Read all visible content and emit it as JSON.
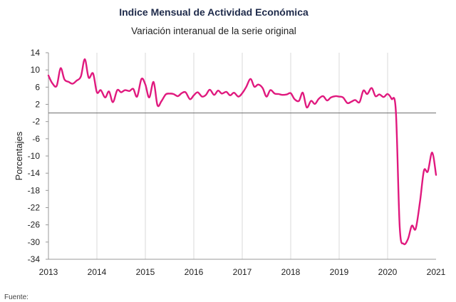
{
  "chart_data": {
    "type": "line",
    "title": "Indice Mensual de  Actividad Económica",
    "subtitle": "Variación interanual de la serie original",
    "xlabel": "",
    "ylabel": "Porcentajes",
    "ylim": [
      -34,
      14
    ],
    "yticks": [
      14,
      10,
      6,
      2,
      -2,
      -6,
      -10,
      -14,
      -18,
      -22,
      -26,
      -30,
      -34
    ],
    "xlim": [
      2013,
      2021
    ],
    "xticks": [
      "2013",
      "2014",
      "2015",
      "2016",
      "2017",
      "2018",
      "2019",
      "2020",
      "2021"
    ],
    "reference_line": 0,
    "grid": "vertical",
    "color": "#e0197e",
    "x": [
      2013.0,
      2013.08,
      2013.17,
      2013.25,
      2013.33,
      2013.42,
      2013.5,
      2013.58,
      2013.67,
      2013.75,
      2013.83,
      2013.92,
      2014.0,
      2014.08,
      2014.17,
      2014.25,
      2014.33,
      2014.42,
      2014.5,
      2014.58,
      2014.67,
      2014.75,
      2014.83,
      2014.92,
      2015.0,
      2015.08,
      2015.17,
      2015.25,
      2015.33,
      2015.42,
      2015.5,
      2015.58,
      2015.67,
      2015.75,
      2015.83,
      2015.92,
      2016.0,
      2016.08,
      2016.17,
      2016.25,
      2016.33,
      2016.42,
      2016.5,
      2016.58,
      2016.67,
      2016.75,
      2016.83,
      2016.92,
      2017.0,
      2017.08,
      2017.17,
      2017.25,
      2017.33,
      2017.42,
      2017.5,
      2017.58,
      2017.67,
      2017.75,
      2017.83,
      2017.92,
      2018.0,
      2018.08,
      2018.17,
      2018.25,
      2018.33,
      2018.42,
      2018.5,
      2018.58,
      2018.67,
      2018.75,
      2018.83,
      2018.92,
      2019.0,
      2019.08,
      2019.17,
      2019.25,
      2019.33,
      2019.42,
      2019.5,
      2019.58,
      2019.67,
      2019.75,
      2019.83,
      2019.92,
      2020.0,
      2020.08,
      2020.17,
      2020.25,
      2020.33,
      2020.42,
      2020.5,
      2020.58,
      2020.67,
      2020.75,
      2020.83,
      2020.92,
      2021.0
    ],
    "values": [
      8.7,
      6.9,
      6.3,
      10.4,
      7.8,
      7.2,
      6.8,
      7.5,
      8.5,
      12.5,
      8.2,
      9.2,
      4.8,
      5.3,
      3.6,
      5.0,
      2.5,
      5.3,
      4.8,
      5.3,
      5.1,
      5.6,
      3.8,
      7.9,
      6.6,
      3.6,
      7.2,
      1.8,
      2.7,
      4.3,
      4.5,
      4.4,
      3.9,
      4.6,
      4.8,
      3.2,
      4.1,
      4.8,
      3.8,
      4.2,
      5.4,
      4.2,
      5.2,
      4.5,
      4.9,
      4.1,
      4.7,
      3.8,
      4.6,
      6.0,
      7.9,
      6.1,
      6.6,
      5.8,
      3.8,
      5.3,
      4.5,
      4.4,
      4.2,
      4.3,
      4.6,
      3.2,
      2.8,
      4.7,
      1.3,
      2.8,
      2.1,
      3.3,
      3.9,
      2.9,
      3.6,
      3.9,
      3.8,
      3.6,
      2.3,
      2.6,
      3.0,
      2.5,
      5.2,
      4.4,
      5.8,
      3.9,
      4.3,
      3.7,
      4.4,
      3.3,
      0.5,
      -26.5,
      -30.4,
      -29.3,
      -26.2,
      -26.9,
      -20.5,
      -13.4,
      -13.6,
      -9.2,
      -14.4
    ]
  },
  "footer_text": "Fuente:"
}
